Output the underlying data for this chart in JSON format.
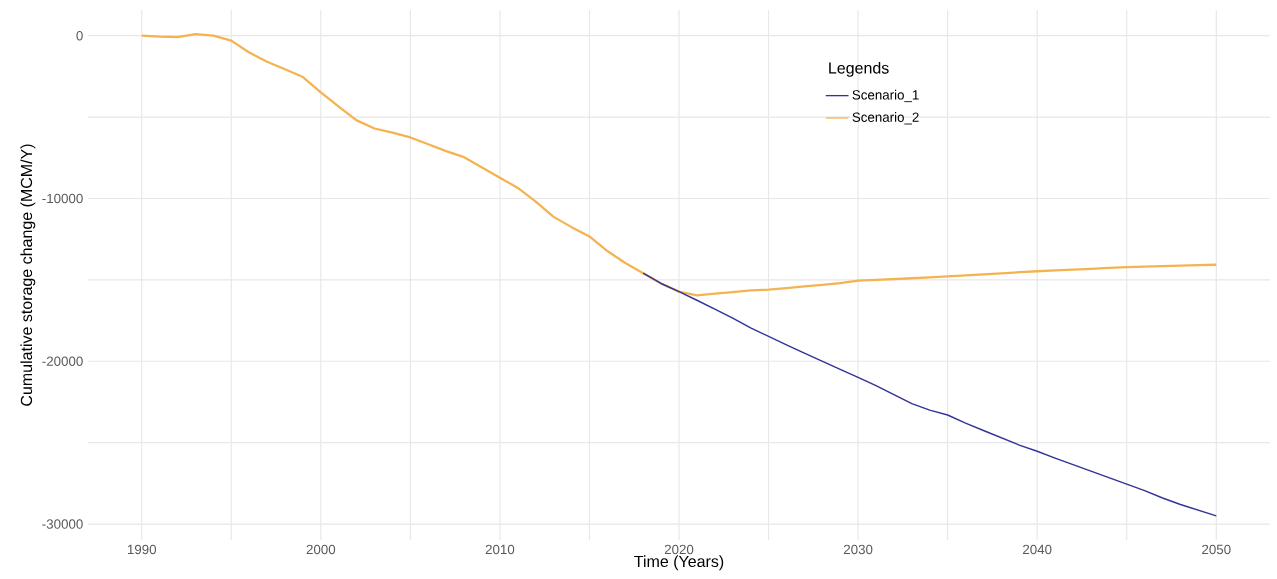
{
  "chart_data": {
    "type": "line",
    "xlabel": "Time (Years)",
    "ylabel": "Cumulative storage change (MCM/Y)",
    "legend_title": "Legends",
    "x": [
      1990,
      1991,
      1992,
      1993,
      1994,
      1995,
      1996,
      1997,
      1998,
      1999,
      2000,
      2001,
      2002,
      2003,
      2004,
      2005,
      2006,
      2007,
      2008,
      2009,
      2010,
      2011,
      2012,
      2013,
      2014,
      2015,
      2016,
      2017,
      2018,
      2019,
      2020,
      2021,
      2022,
      2023,
      2024,
      2025,
      2026,
      2027,
      2028,
      2029,
      2030,
      2031,
      2032,
      2033,
      2034,
      2035,
      2036,
      2037,
      2038,
      2039,
      2040,
      2041,
      2042,
      2043,
      2044,
      2045,
      2046,
      2047,
      2048,
      2049,
      2050
    ],
    "series": [
      {
        "name": "Scenario_1",
        "color": "#33339a",
        "values": [
          null,
          null,
          null,
          null,
          null,
          null,
          null,
          null,
          null,
          null,
          null,
          null,
          null,
          null,
          null,
          null,
          null,
          null,
          null,
          null,
          null,
          null,
          null,
          null,
          null,
          null,
          null,
          null,
          -14590,
          -15220,
          -15720,
          -16250,
          -16800,
          -17350,
          -17950,
          -18470,
          -18990,
          -19500,
          -20000,
          -20500,
          -20990,
          -21500,
          -22050,
          -22600,
          -23000,
          -23300,
          -23800,
          -24250,
          -24700,
          -25150,
          -25530,
          -25950,
          -26350,
          -26750,
          -27150,
          -27550,
          -27950,
          -28400,
          -28800,
          -29150,
          -29500
        ]
      },
      {
        "name": "Scenario_2",
        "color": "#f4b350",
        "values": [
          0,
          -60,
          -80,
          100,
          0,
          -300,
          -1030,
          -1600,
          -2060,
          -2540,
          -3480,
          -4350,
          -5200,
          -5700,
          -5950,
          -6250,
          -6670,
          -7090,
          -7460,
          -8090,
          -8720,
          -9350,
          -10190,
          -11130,
          -11760,
          -12330,
          -13230,
          -13960,
          -14590,
          -15220,
          -15720,
          -15950,
          -15850,
          -15750,
          -15650,
          -15600,
          -15500,
          -15400,
          -15300,
          -15200,
          -15050,
          -15000,
          -14950,
          -14900,
          -14850,
          -14780,
          -14720,
          -14660,
          -14600,
          -14530,
          -14470,
          -14420,
          -14370,
          -14320,
          -14260,
          -14210,
          -14180,
          -14150,
          -14120,
          -14090,
          -14070
        ]
      }
    ],
    "xlim": [
      1987,
      2053
    ],
    "ylim": [
      -30980,
      1580
    ],
    "xticks": [
      1990,
      2000,
      2010,
      2020,
      2030,
      2040,
      2050
    ],
    "yticks": [
      -30000,
      -20000,
      -10000,
      0
    ],
    "grid": true,
    "legend": "top right",
    "line_style": "solid",
    "marker": "none"
  }
}
